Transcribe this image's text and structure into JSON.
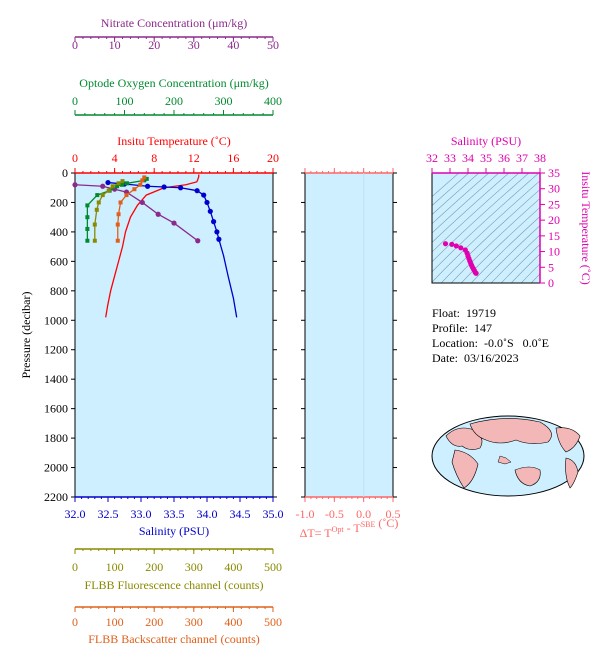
{
  "colors": {
    "nitrate": "#8b2a8b",
    "oxygen": "#008a2e",
    "temperature": "#ff0000",
    "salinity": "#0000cc",
    "fluorescence": "#8a8a00",
    "backscatter": "#e0601a",
    "delta": "#ff6666",
    "ts": "#e000b0",
    "panel_bg": "#cdefff"
  },
  "chart_data": [
    {
      "type": "line",
      "name_key": "profile",
      "y_label": "Pressure (decibar)",
      "y_ticks": [
        "0",
        "200",
        "400",
        "600",
        "800",
        "1000",
        "1200",
        "1400",
        "1600",
        "1800",
        "2000",
        "2200"
      ],
      "ylim": [
        0,
        2200
      ],
      "y_reversed": true,
      "axes": {
        "nitrate": {
          "label": "Nitrate Concentration (μm/kg)",
          "ticks": [
            "0",
            "10",
            "20",
            "30",
            "40",
            "50"
          ],
          "range": [
            0,
            50
          ]
        },
        "oxygen": {
          "label": "Optode Oxygen Concentration (μm/kg)",
          "ticks": [
            "0",
            "100",
            "200",
            "300",
            "400"
          ],
          "range": [
            0,
            400
          ]
        },
        "temperature": {
          "label": "Insitu Temperature (˚C)",
          "ticks": [
            "0",
            "4",
            "8",
            "12",
            "16",
            "20"
          ],
          "range": [
            0,
            20
          ]
        },
        "salinity": {
          "label": "Salinity (PSU)",
          "ticks": [
            "32.0",
            "32.5",
            "33.0",
            "33.5",
            "34.0",
            "34.5",
            "35.0"
          ],
          "range": [
            32.0,
            35.0
          ]
        },
        "fluorescence": {
          "label": "FLBB Fluorescence channel (counts)",
          "ticks": [
            "0",
            "100",
            "200",
            "300",
            "400",
            "500"
          ],
          "range": [
            0,
            500
          ]
        },
        "backscatter": {
          "label": "FLBB Backscatter channel (counts)",
          "ticks": [
            "0",
            "100",
            "200",
            "300",
            "400",
            "500"
          ],
          "range": [
            0,
            500
          ]
        }
      },
      "series": [
        {
          "key": "temperature",
          "axis": "temperature",
          "markers": false,
          "points": [
            [
              12.5,
              10
            ],
            [
              12.5,
              25
            ],
            [
              12.4,
              45
            ],
            [
              12.3,
              60
            ],
            [
              11.2,
              80
            ],
            [
              9.0,
              100
            ],
            [
              7.2,
              150
            ],
            [
              6.3,
              220
            ],
            [
              5.6,
              300
            ],
            [
              5.1,
              400
            ],
            [
              4.8,
              500
            ],
            [
              4.4,
              600
            ],
            [
              4.0,
              700
            ],
            [
              3.6,
              800
            ],
            [
              3.3,
              900
            ],
            [
              3.1,
              980
            ]
          ]
        },
        {
          "key": "salinity",
          "axis": "salinity",
          "markers": true,
          "marker_until": 500,
          "points": [
            [
              32.5,
              65
            ],
            [
              32.75,
              75
            ],
            [
              33.1,
              90
            ],
            [
              33.35,
              95
            ],
            [
              33.6,
              100
            ],
            [
              33.85,
              120
            ],
            [
              33.95,
              150
            ],
            [
              34.0,
              200
            ],
            [
              34.05,
              260
            ],
            [
              34.1,
              330
            ],
            [
              34.15,
              400
            ],
            [
              34.18,
              450
            ],
            [
              34.25,
              560
            ],
            [
              34.32,
              700
            ],
            [
              34.4,
              850
            ],
            [
              34.45,
              980
            ]
          ]
        },
        {
          "key": "nitrate",
          "axis": "nitrate",
          "markers": true,
          "points": [
            [
              0,
              80
            ],
            [
              7,
              90
            ],
            [
              10,
              110
            ],
            [
              13,
              130
            ],
            [
              17,
              200
            ],
            [
              21,
              280
            ],
            [
              25,
              340
            ],
            [
              31,
              460
            ]
          ]
        },
        {
          "key": "oxygen",
          "axis": "oxygen",
          "markers": true,
          "points": [
            [
              145,
              40
            ],
            [
              140,
              50
            ],
            [
              105,
              70
            ],
            [
              95,
              80
            ],
            [
              85,
              90
            ],
            [
              70,
              120
            ],
            [
              45,
              150
            ],
            [
              25,
              220
            ],
            [
              25,
              300
            ],
            [
              25,
              380
            ],
            [
              25,
              460
            ]
          ]
        },
        {
          "key": "fluorescence",
          "axis": "fluorescence",
          "markers": true,
          "points": [
            [
              120,
              55
            ],
            [
              110,
              70
            ],
            [
              95,
              90
            ],
            [
              85,
              120
            ],
            [
              70,
              150
            ],
            [
              60,
              200
            ],
            [
              55,
              250
            ],
            [
              50,
              350
            ],
            [
              50,
              460
            ]
          ]
        },
        {
          "key": "backscatter",
          "axis": "backscatter",
          "markers": true,
          "points": [
            [
              175,
              30
            ],
            [
              170,
              50
            ],
            [
              165,
              80
            ],
            [
              150,
              110
            ],
            [
              130,
              150
            ],
            [
              115,
              200
            ],
            [
              110,
              280
            ],
            [
              108,
              350
            ],
            [
              108,
              460
            ]
          ]
        }
      ]
    },
    {
      "type": "line",
      "name_key": "delta",
      "x_label_main": "ΔT= T",
      "x_label_sup1": "Opt",
      "x_label_mid": " - T",
      "x_label_sup2": "SBE",
      "x_label_end": " (˚C)",
      "x_ticks": [
        "-1.0",
        "-0.5",
        "0.0",
        "0.5"
      ],
      "xlim": [
        -1.0,
        0.5
      ],
      "series": []
    },
    {
      "type": "scatter",
      "name_key": "ts",
      "x_label": "Salinity (PSU)",
      "y_label": "Insitu Temperature (˚C)",
      "x_ticks": [
        "32",
        "33",
        "34",
        "35",
        "36",
        "37",
        "38"
      ],
      "xlim": [
        32,
        38
      ],
      "y_ticks": [
        "0",
        "5",
        "10",
        "15",
        "20",
        "25",
        "30",
        "35"
      ],
      "ylim": [
        0,
        35
      ],
      "series": [
        {
          "points": [
            [
              34.45,
              3.1
            ],
            [
              34.4,
              3.4
            ],
            [
              34.35,
              4.0
            ],
            [
              34.3,
              4.5
            ],
            [
              34.25,
              5.0
            ],
            [
              34.2,
              5.6
            ],
            [
              34.15,
              6.3
            ],
            [
              34.1,
              7.0
            ],
            [
              34.05,
              7.8
            ],
            [
              34.0,
              8.6
            ],
            [
              33.95,
              9.5
            ],
            [
              33.85,
              10.5
            ],
            [
              33.6,
              11.2
            ],
            [
              33.35,
              11.8
            ],
            [
              33.1,
              12.3
            ],
            [
              32.75,
              12.5
            ]
          ]
        }
      ]
    }
  ],
  "info": {
    "float_label": "Float:",
    "float_value": "19719",
    "profile_label": "Profile:",
    "profile_value": "147",
    "location_label": "Location:",
    "location_value": "-0.0˚S   0.0˚E",
    "date_label": "Date:",
    "date_value": "03/16/2023"
  }
}
